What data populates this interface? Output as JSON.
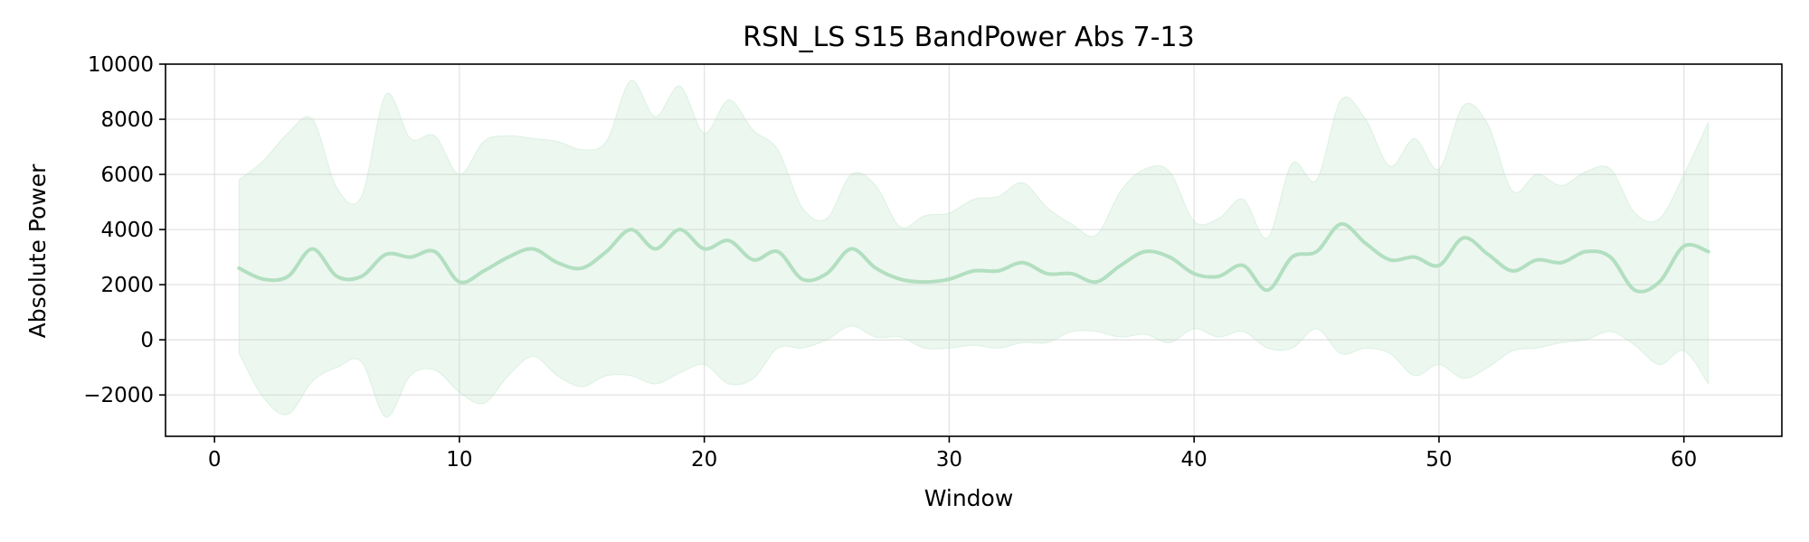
{
  "chart_data": {
    "type": "line",
    "title": "RSN_LS S15 BandPower Abs 7-13",
    "xlabel": "Window",
    "ylabel": "Absolute Power",
    "xlim": [
      -2,
      64
    ],
    "ylim": [
      -3500,
      10000
    ],
    "xticks": [
      0,
      10,
      20,
      30,
      40,
      50,
      60
    ],
    "yticks": [
      -2000,
      0,
      2000,
      4000,
      6000,
      8000,
      10000
    ],
    "ytick_labels": [
      "−2000",
      "0",
      "2000",
      "4000",
      "6000",
      "8000",
      "10000"
    ],
    "grid": true,
    "line_color": "#b2dfc0",
    "band_color": "#b2dfc0",
    "x": [
      1,
      2,
      3,
      4,
      5,
      6,
      7,
      8,
      9,
      10,
      11,
      12,
      13,
      14,
      15,
      16,
      17,
      18,
      19,
      20,
      21,
      22,
      23,
      24,
      25,
      26,
      27,
      28,
      29,
      30,
      31,
      32,
      33,
      34,
      35,
      36,
      37,
      38,
      39,
      40,
      41,
      42,
      43,
      44,
      45,
      46,
      47,
      48,
      49,
      50,
      51,
      52,
      53,
      54,
      55,
      56,
      57,
      58,
      59,
      60,
      61
    ],
    "series": [
      {
        "values": [
          2600,
          2200,
          2300,
          3300,
          2300,
          2300,
          3100,
          3000,
          3200,
          2100,
          2500,
          3000,
          3300,
          2800,
          2600,
          3200,
          4000,
          3300,
          4000,
          3300,
          3600,
          2900,
          3200,
          2200,
          2400,
          3300,
          2600,
          2200,
          2100,
          2200,
          2500,
          2500,
          2800,
          2400,
          2400,
          2100,
          2700,
          3200,
          3000,
          2400,
          2300,
          2700,
          1800,
          3000,
          3200,
          4200,
          3500,
          2900,
          3000,
          2700,
          3700,
          3100,
          2500,
          2900,
          2800,
          3200,
          3000,
          1800,
          2100,
          3400,
          3200
        ],
        "upper": [
          5800,
          6500,
          7500,
          8000,
          5500,
          5200,
          8900,
          7300,
          7400,
          6000,
          7200,
          7400,
          7300,
          7200,
          6900,
          7200,
          9400,
          8100,
          9200,
          7500,
          8700,
          7600,
          6900,
          4800,
          4400,
          6000,
          5600,
          4100,
          4500,
          4600,
          5100,
          5200,
          5700,
          4800,
          4200,
          3800,
          5400,
          6200,
          6100,
          4300,
          4400,
          5100,
          3700,
          6400,
          5800,
          8700,
          8000,
          6300,
          7300,
          6200,
          8500,
          7800,
          5400,
          6000,
          5600,
          6100,
          6200,
          4600,
          4400,
          6000,
          7900
        ],
        "lower": [
          -500,
          -2100,
          -2700,
          -1500,
          -1000,
          -800,
          -2800,
          -1300,
          -1100,
          -1900,
          -2300,
          -1300,
          -600,
          -1300,
          -1700,
          -1300,
          -1300,
          -1600,
          -1200,
          -900,
          -1600,
          -1400,
          -300,
          -300,
          0,
          500,
          100,
          100,
          -300,
          -300,
          -200,
          -300,
          -100,
          -100,
          300,
          300,
          100,
          200,
          -100,
          400,
          100,
          300,
          -300,
          -300,
          400,
          -500,
          -300,
          -500,
          -1300,
          -900,
          -1400,
          -1000,
          -400,
          -300,
          -100,
          0,
          300,
          -200,
          -900,
          -400,
          -1600
        ]
      }
    ]
  }
}
